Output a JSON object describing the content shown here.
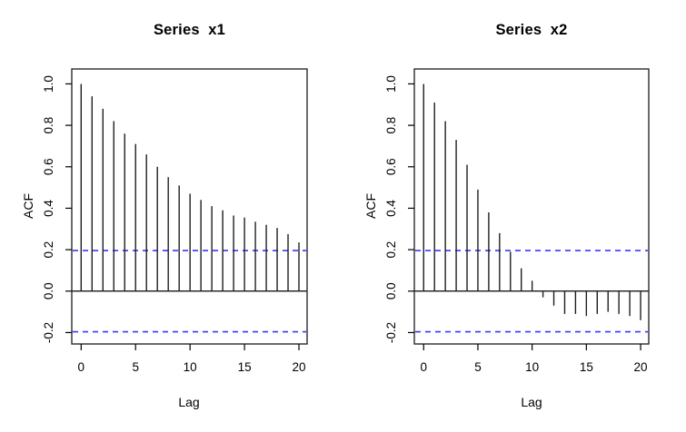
{
  "figure": {
    "kind": "R acf() autocorrelation plot, two panels side by side",
    "background": "#ffffff"
  },
  "colors": {
    "bar": "#1f1f1f",
    "axis": "#000000",
    "box": "#2b2b2b",
    "ci_line": "#3737ff",
    "text": "#000000",
    "background": "#ffffff"
  },
  "chart_data": [
    {
      "type": "bar",
      "subtype": "acf-stick-plot",
      "title": "Series  x1",
      "xlabel": "Lag",
      "ylabel": "ACF",
      "x": [
        0,
        1,
        2,
        3,
        4,
        5,
        6,
        7,
        8,
        9,
        10,
        11,
        12,
        13,
        14,
        15,
        16,
        17,
        18,
        19,
        20
      ],
      "values": [
        1.0,
        0.94,
        0.88,
        0.82,
        0.76,
        0.71,
        0.66,
        0.6,
        0.55,
        0.51,
        0.47,
        0.44,
        0.41,
        0.39,
        0.365,
        0.355,
        0.335,
        0.32,
        0.305,
        0.275,
        0.235
      ],
      "confidence_bound": 0.196,
      "zero_line": true,
      "x_ticks": [
        0,
        5,
        10,
        15,
        20
      ],
      "y_ticks": [
        -0.2,
        0.0,
        0.2,
        0.4,
        0.6,
        0.8,
        1.0
      ],
      "xlim": [
        -0.86,
        20.75
      ],
      "ylim": [
        -0.255,
        1.072
      ],
      "grid": false,
      "legend": null
    },
    {
      "type": "bar",
      "subtype": "acf-stick-plot",
      "title": "Series  x2",
      "xlabel": "Lag",
      "ylabel": "ACF",
      "x": [
        0,
        1,
        2,
        3,
        4,
        5,
        6,
        7,
        8,
        9,
        10,
        11,
        12,
        13,
        14,
        15,
        16,
        17,
        18,
        19,
        20
      ],
      "values": [
        1.0,
        0.91,
        0.82,
        0.73,
        0.61,
        0.49,
        0.38,
        0.28,
        0.19,
        0.11,
        0.05,
        -0.03,
        -0.07,
        -0.11,
        -0.11,
        -0.12,
        -0.11,
        -0.1,
        -0.11,
        -0.12,
        -0.14
      ],
      "confidence_bound": 0.196,
      "zero_line": true,
      "x_ticks": [
        0,
        5,
        10,
        15,
        20
      ],
      "y_ticks": [
        -0.2,
        0.0,
        0.2,
        0.4,
        0.6,
        0.8,
        1.0
      ],
      "xlim": [
        -0.86,
        20.75
      ],
      "ylim": [
        -0.255,
        1.072
      ],
      "grid": false,
      "legend": null
    }
  ]
}
